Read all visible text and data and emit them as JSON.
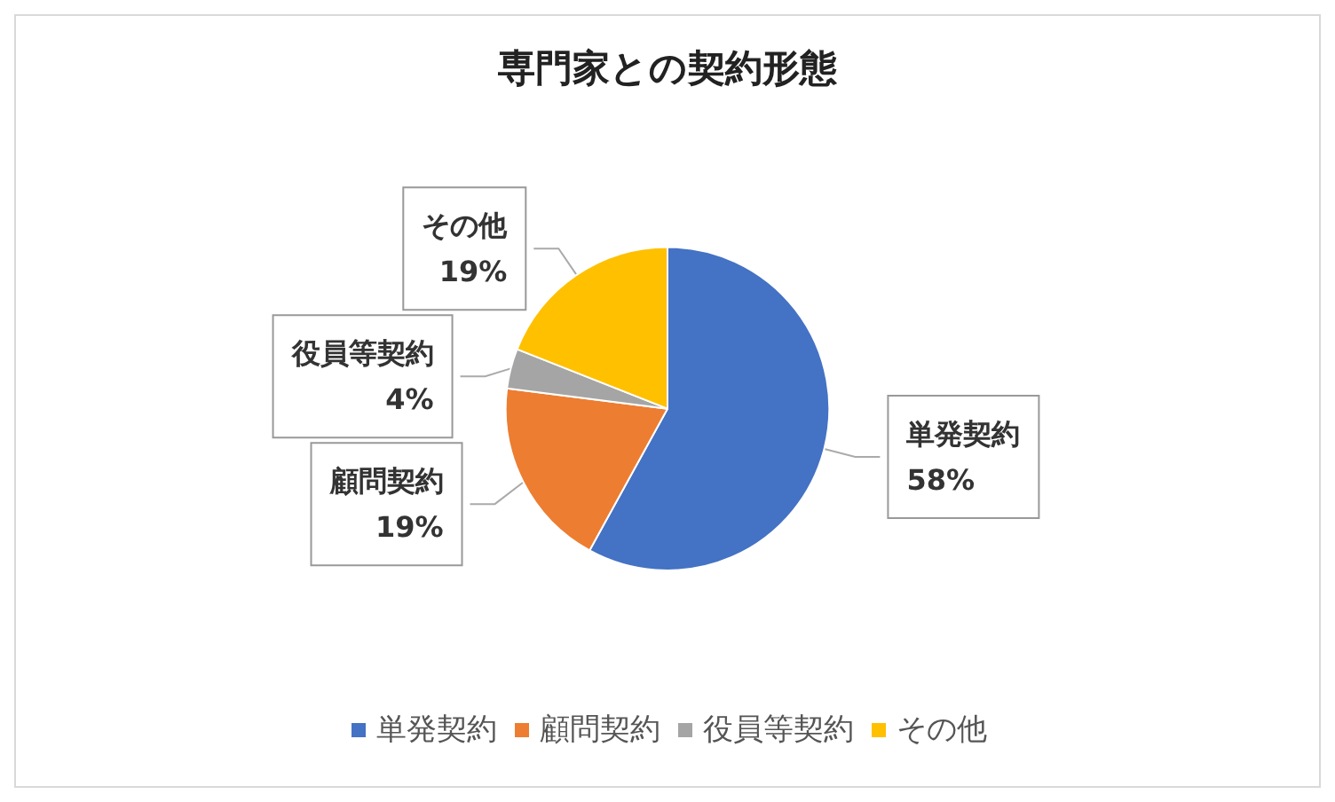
{
  "chart_data": {
    "type": "pie",
    "title": "専門家との契約形態",
    "categories": [
      "単発契約",
      "顧問契約",
      "役員等契約",
      "その他"
    ],
    "values": [
      58,
      19,
      4,
      19
    ],
    "colors": [
      "#4472c4",
      "#ed7d31",
      "#a5a5a5",
      "#ffc000"
    ],
    "value_labels": [
      "58%",
      "19%",
      "4%",
      "19%"
    ],
    "legend": "bottom"
  }
}
